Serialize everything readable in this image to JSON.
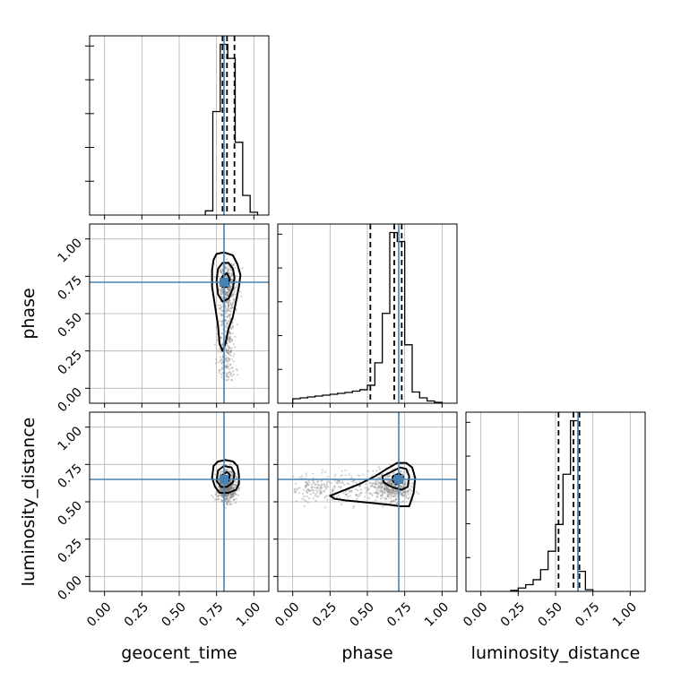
{
  "chart_data": {
    "type": "corner",
    "parameters": [
      "geocent_time",
      "phase",
      "luminosity_distance"
    ],
    "truths": {
      "geocent_time": 0.8,
      "phase": 0.71,
      "luminosity_distance": 0.65
    },
    "axis_range": [
      -0.1,
      1.1
    ],
    "ticks": [
      0.0,
      0.25,
      0.5,
      0.75,
      1.0
    ],
    "tick_labels": [
      "0.00",
      "0.25",
      "0.50",
      "0.75",
      "1.00"
    ],
    "grid": true,
    "colors": {
      "truth": "#4682b4",
      "hist": "#000000",
      "scatter": "#7f7f7f",
      "grid": "#b0b0b0"
    },
    "marginals": [
      {
        "parameter": "geocent_time",
        "bins": [
          0.675,
          0.725,
          0.775,
          0.825,
          0.875,
          0.925,
          0.975,
          1.025
        ],
        "counts": [
          0.15,
          3.7,
          6.1,
          5.6,
          2.6,
          0.7,
          0.1
        ],
        "quantiles": [
          0.79,
          0.82,
          0.87
        ]
      },
      {
        "parameter": "phase",
        "bins": [
          0.0,
          0.05,
          0.1,
          0.15,
          0.2,
          0.25,
          0.3,
          0.35,
          0.4,
          0.45,
          0.5,
          0.55,
          0.6,
          0.65,
          0.7,
          0.75,
          0.8,
          0.85,
          0.9,
          0.95,
          1.0
        ],
        "counts": [
          0.1,
          0.12,
          0.14,
          0.16,
          0.18,
          0.2,
          0.22,
          0.24,
          0.27,
          0.3,
          0.4,
          0.9,
          2.0,
          3.8,
          3.6,
          1.3,
          0.25,
          0.12,
          0.05,
          0.02
        ],
        "quantiles": [
          0.52,
          0.68,
          0.73
        ]
      },
      {
        "parameter": "luminosity_distance",
        "bins": [
          0.2,
          0.25,
          0.3,
          0.35,
          0.4,
          0.45,
          0.5,
          0.55,
          0.6,
          0.65,
          0.7,
          0.75
        ],
        "counts": [
          0.03,
          0.1,
          0.2,
          0.35,
          0.65,
          1.2,
          2.0,
          3.5,
          5.1,
          0.6,
          0.05
        ],
        "quantiles": [
          0.52,
          0.62,
          0.66
        ]
      }
    ],
    "pairs": [
      {
        "x": "geocent_time",
        "y": "phase",
        "contours": [
          [
            [
              0.73,
              0.86
            ],
            [
              0.75,
              0.9
            ],
            [
              0.8,
              0.91
            ],
            [
              0.86,
              0.89
            ],
            [
              0.89,
              0.83
            ],
            [
              0.91,
              0.76
            ],
            [
              0.9,
              0.68
            ],
            [
              0.88,
              0.58
            ],
            [
              0.86,
              0.48
            ],
            [
              0.83,
              0.4
            ],
            [
              0.81,
              0.3
            ],
            [
              0.79,
              0.25
            ],
            [
              0.77,
              0.3
            ],
            [
              0.76,
              0.42
            ],
            [
              0.74,
              0.55
            ],
            [
              0.72,
              0.68
            ],
            [
              0.72,
              0.79
            ]
          ],
          [
            [
              0.76,
              0.8
            ],
            [
              0.79,
              0.84
            ],
            [
              0.83,
              0.84
            ],
            [
              0.86,
              0.8
            ],
            [
              0.87,
              0.74
            ],
            [
              0.86,
              0.67
            ],
            [
              0.83,
              0.6
            ],
            [
              0.79,
              0.58
            ],
            [
              0.76,
              0.63
            ],
            [
              0.75,
              0.72
            ]
          ],
          [
            [
              0.79,
              0.75
            ],
            [
              0.82,
              0.77
            ],
            [
              0.84,
              0.73
            ],
            [
              0.82,
              0.68
            ],
            [
              0.79,
              0.68
            ],
            [
              0.78,
              0.71
            ]
          ]
        ]
      },
      {
        "x": "geocent_time",
        "y": "luminosity_distance",
        "contours": [
          [
            [
              0.73,
              0.74
            ],
            [
              0.76,
              0.77
            ],
            [
              0.81,
              0.78
            ],
            [
              0.86,
              0.77
            ],
            [
              0.89,
              0.74
            ],
            [
              0.9,
              0.68
            ],
            [
              0.9,
              0.62
            ],
            [
              0.88,
              0.58
            ],
            [
              0.83,
              0.56
            ],
            [
              0.77,
              0.56
            ],
            [
              0.74,
              0.6
            ],
            [
              0.72,
              0.66
            ]
          ],
          [
            [
              0.76,
              0.71
            ],
            [
              0.8,
              0.74
            ],
            [
              0.85,
              0.73
            ],
            [
              0.87,
              0.69
            ],
            [
              0.86,
              0.63
            ],
            [
              0.82,
              0.6
            ],
            [
              0.78,
              0.6
            ],
            [
              0.75,
              0.64
            ]
          ],
          [
            [
              0.79,
              0.68
            ],
            [
              0.82,
              0.7
            ],
            [
              0.84,
              0.68
            ],
            [
              0.83,
              0.64
            ],
            [
              0.8,
              0.63
            ],
            [
              0.78,
              0.65
            ]
          ]
        ]
      },
      {
        "x": "phase",
        "y": "luminosity_distance",
        "contours": [
          [
            [
              0.25,
              0.54
            ],
            [
              0.35,
              0.58
            ],
            [
              0.45,
              0.62
            ],
            [
              0.55,
              0.67
            ],
            [
              0.63,
              0.72
            ],
            [
              0.7,
              0.76
            ],
            [
              0.76,
              0.76
            ],
            [
              0.8,
              0.73
            ],
            [
              0.82,
              0.66
            ],
            [
              0.81,
              0.56
            ],
            [
              0.78,
              0.47
            ],
            [
              0.72,
              0.47
            ],
            [
              0.65,
              0.48
            ],
            [
              0.55,
              0.49
            ],
            [
              0.45,
              0.5
            ],
            [
              0.35,
              0.51
            ],
            [
              0.28,
              0.52
            ]
          ],
          [
            [
              0.6,
              0.67
            ],
            [
              0.66,
              0.7
            ],
            [
              0.72,
              0.73
            ],
            [
              0.76,
              0.72
            ],
            [
              0.78,
              0.67
            ],
            [
              0.77,
              0.6
            ],
            [
              0.73,
              0.58
            ],
            [
              0.66,
              0.6
            ],
            [
              0.61,
              0.63
            ]
          ],
          [
            [
              0.67,
              0.67
            ],
            [
              0.71,
              0.69
            ],
            [
              0.74,
              0.67
            ],
            [
              0.73,
              0.63
            ],
            [
              0.69,
              0.62
            ],
            [
              0.67,
              0.64
            ]
          ]
        ]
      }
    ]
  }
}
